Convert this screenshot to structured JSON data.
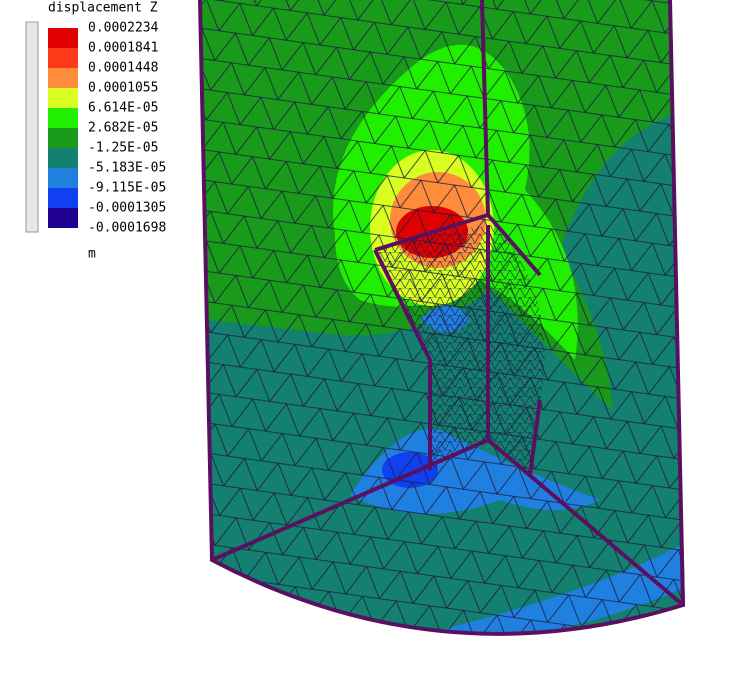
{
  "legend": {
    "title": "displacement Z",
    "labels": [
      "0.0002234",
      "0.0001841",
      "0.0001448",
      "0.0001055",
      "6.614E-05",
      "2.682E-05",
      "-1.25E-05",
      "-5.183E-05",
      "-9.115E-05",
      "-0.0001305",
      "-0.0001698"
    ],
    "colors": [
      "#e00000",
      "#ff3a1a",
      "#ff8c3a",
      "#d8ff20",
      "#20f000",
      "#1a9a1a",
      "#148070",
      "#2080e0",
      "#1040f0",
      "#200090"
    ],
    "unit": "m"
  }
}
